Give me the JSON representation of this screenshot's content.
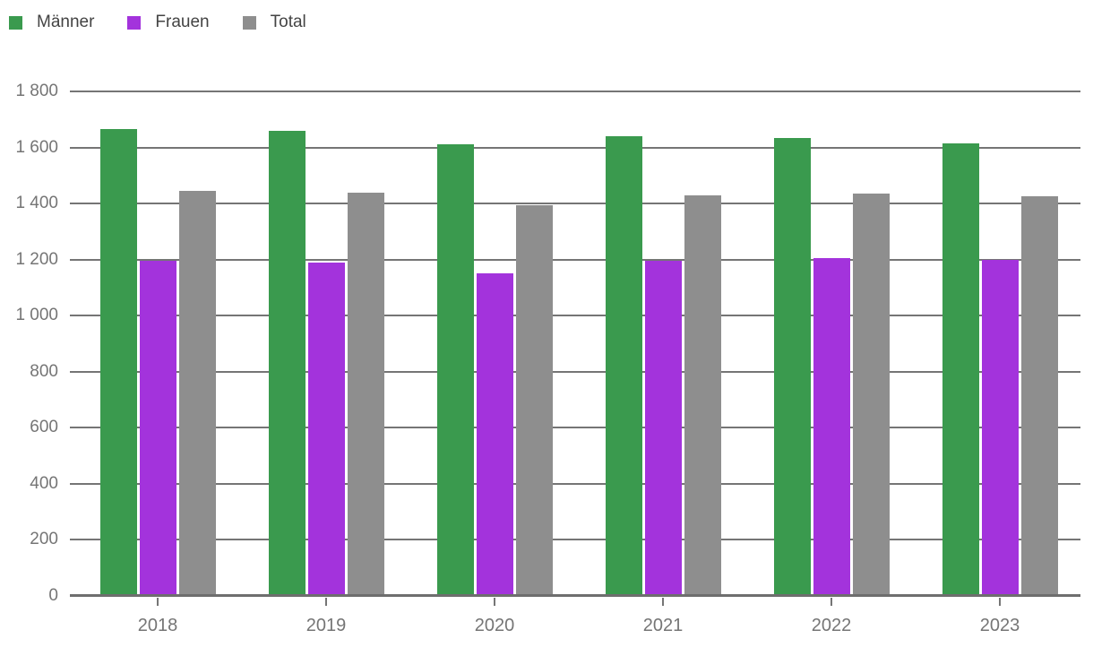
{
  "chart_data": {
    "type": "bar",
    "title": "",
    "categories": [
      "2018",
      "2019",
      "2020",
      "2021",
      "2022",
      "2023"
    ],
    "series": [
      {
        "name": "Männer",
        "color": "#3a9a4e",
        "values": [
          1665,
          1660,
          1610,
          1640,
          1635,
          1615
        ]
      },
      {
        "name": "Frauen",
        "color": "#a333dc",
        "values": [
          1195,
          1190,
          1150,
          1195,
          1205,
          1200
        ]
      },
      {
        "name": "Total",
        "color": "#8e8e8e",
        "values": [
          1445,
          1440,
          1395,
          1430,
          1435,
          1425
        ]
      }
    ],
    "xlabel": "",
    "ylabel": "",
    "ylim": [
      0,
      1800
    ],
    "ytick_interval": 200,
    "ytick_labels": [
      "0",
      "200",
      "400",
      "600",
      "800",
      "1 000",
      "1 200",
      "1 400",
      "1 600",
      "1 800"
    ],
    "grid": true,
    "legend_position": "top-left",
    "axis_color": "#757575",
    "label_color": "#757575",
    "legend_text_color": "#444444"
  }
}
